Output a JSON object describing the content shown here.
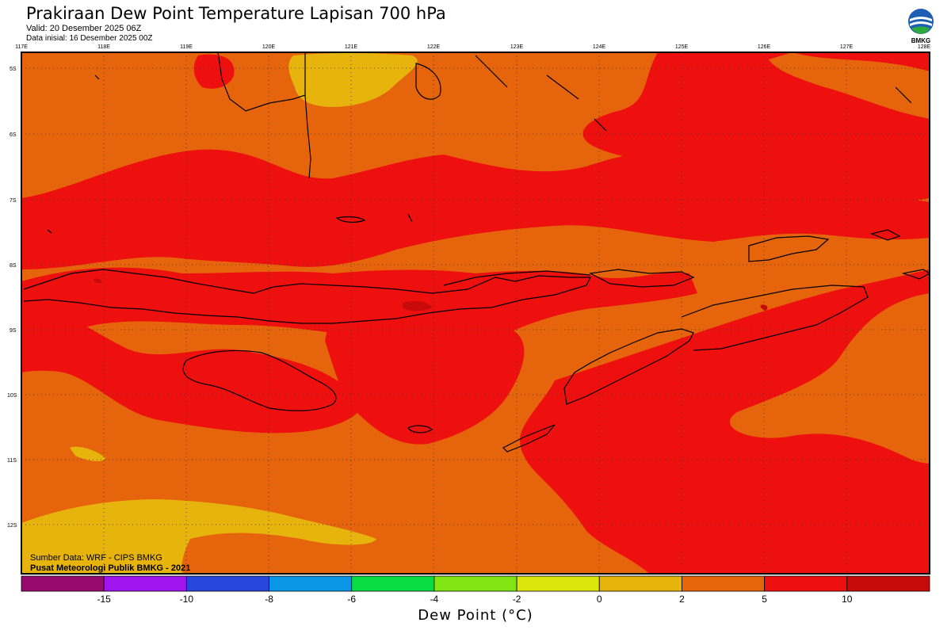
{
  "header": {
    "title": "Prakiraan Dew Point Temperature Lapisan 700 hPa",
    "valid": "Valid: 20 Desember 2025 06Z",
    "init": "Data inisial: 16 Desember 2025 00Z",
    "logo_text": "BMKG"
  },
  "map": {
    "lon_labels": [
      "117E",
      "118E",
      "119E",
      "120E",
      "121E",
      "122E",
      "123E",
      "124E",
      "125E",
      "126E",
      "127E",
      "128E"
    ],
    "lat_labels": [
      "5S",
      "6S",
      "7S",
      "8S",
      "9S",
      "10S",
      "11S",
      "12S"
    ],
    "source_line1": "Sumber Data: WRF - CIPS BMKG",
    "source_line2": "Pusat Meteorologi Publik BMKG - 2021",
    "fields": [
      {
        "name": "dewpoint 2 to 5",
        "color": "#E6650C"
      },
      {
        "name": "dewpoint 5 to 10",
        "color": "#EE0F0F"
      },
      {
        "name": "dewpoint 0 to 2",
        "color": "#E6B40C"
      },
      {
        "name": "dewpoint 10 to 15",
        "color": "#C80A0A"
      }
    ]
  },
  "colorbar": {
    "colors": [
      "#990A6E",
      "#A014F0",
      "#2846DC",
      "#0A96E6",
      "#0ADC46",
      "#82E614",
      "#DCE60A",
      "#E6B40C",
      "#E6650C",
      "#EE0F0F",
      "#C80A0A"
    ],
    "ticks": [
      "-15",
      "-10",
      "-8",
      "-6",
      "-4",
      "-2",
      "0",
      "2",
      "5",
      "10"
    ],
    "label": "Dew Point (°C)"
  }
}
